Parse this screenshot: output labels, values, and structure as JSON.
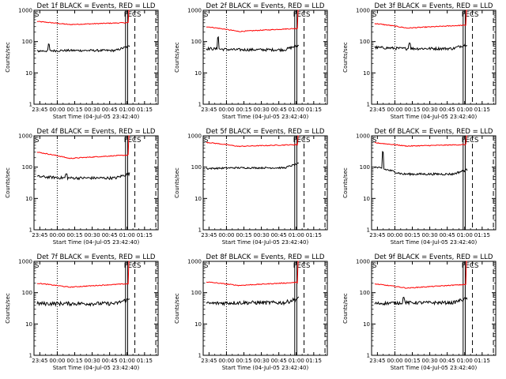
{
  "chart_data": {
    "type": "line",
    "layout": "3x3 grid",
    "background": "#ffffff",
    "axis_color": "#000000",
    "events_color": "#000000",
    "lld_color": "#ff0000",
    "ylabel": "Counts/sec",
    "xlabel": "Start Time (04-Jul-05 23:42:40)",
    "yscale": "log",
    "ylim": [
      1,
      1000
    ],
    "y_ticks": [
      {
        "value": 1,
        "label": "1"
      },
      {
        "value": 10,
        "label": "10"
      },
      {
        "value": 100,
        "label": "100"
      },
      {
        "value": 1000,
        "label": "1000"
      }
    ],
    "xlim": [
      -2.67,
      104
    ],
    "x_ticks": [
      {
        "value": 2.33,
        "label": "23:45"
      },
      {
        "value": 17.33,
        "label": "00:00"
      },
      {
        "value": 32.33,
        "label": "00:15"
      },
      {
        "value": 47.33,
        "label": "00:30"
      },
      {
        "value": 62.33,
        "label": "00:45"
      },
      {
        "value": 77.33,
        "label": "01:00"
      },
      {
        "value": 92.33,
        "label": "01:15"
      }
    ],
    "annotations": [
      "S",
      "FECS"
    ],
    "panels": [
      {
        "title": "Det 1f BLACK = Events, RED = LLD",
        "events": {
          "start": 50,
          "base": 52,
          "spikes": [
            [
              10,
              1.6
            ]
          ],
          "jitter": 0.08
        },
        "lld": {
          "start": 440,
          "base": 350,
          "end": 400
        }
      },
      {
        "title": "Det 2f BLACK = Events, RED = LLD",
        "events": {
          "start": 60,
          "base": 55,
          "spikes": [
            [
              10,
              2.5
            ]
          ],
          "jitter": 0.1
        },
        "lld": {
          "start": 300,
          "base": 210,
          "end": 260
        }
      },
      {
        "title": "Det 3f BLACK = Events, RED = LLD",
        "events": {
          "start": 65,
          "base": 60,
          "spikes": [
            [
              30,
              1.5
            ]
          ],
          "jitter": 0.1
        },
        "lld": {
          "start": 380,
          "base": 270,
          "end": 330
        }
      },
      {
        "title": "Det 4f BLACK = Events, RED = LLD",
        "events": {
          "start": 50,
          "base": 45,
          "spikes": [
            [
              25,
              1.3
            ]
          ],
          "jitter": 0.1
        },
        "lld": {
          "start": 300,
          "base": 190,
          "end": 240
        }
      },
      {
        "title": "Det 5f BLACK = Events, RED = LLD",
        "events": {
          "start": 90,
          "base": 95,
          "spikes": [],
          "jitter": 0.06
        },
        "lld": {
          "start": 620,
          "base": 460,
          "end": 520
        }
      },
      {
        "title": "Det 6f BLACK = Events, RED = LLD",
        "events": {
          "start": 100,
          "base": 60,
          "spikes": [
            [
              7,
              3.5
            ]
          ],
          "jitter": 0.08
        },
        "lld": {
          "start": 600,
          "base": 470,
          "end": 520
        }
      },
      {
        "title": "Det 7f BLACK = Events, RED = LLD",
        "events": {
          "start": 45,
          "base": 45,
          "spikes": [],
          "jitter": 0.14
        },
        "lld": {
          "start": 200,
          "base": 150,
          "end": 190
        }
      },
      {
        "title": "Det 8f BLACK = Events, RED = LLD",
        "events": {
          "start": 45,
          "base": 48,
          "spikes": [],
          "jitter": 0.14
        },
        "lld": {
          "start": 220,
          "base": 170,
          "end": 210
        }
      },
      {
        "title": "Det 9f BLACK = Events, RED = LLD",
        "events": {
          "start": 45,
          "base": 48,
          "spikes": [
            [
              25,
              1.4
            ]
          ],
          "jitter": 0.12
        },
        "lld": {
          "start": 190,
          "base": 140,
          "end": 180
        }
      }
    ],
    "series_x_range": [
      0,
      79.5
    ],
    "markers": {
      "dotted_x": [
        17.33
      ],
      "solid_x": [
        76.0,
        77.8
      ],
      "dashed_x": [
        84.0,
        102.0
      ]
    }
  }
}
